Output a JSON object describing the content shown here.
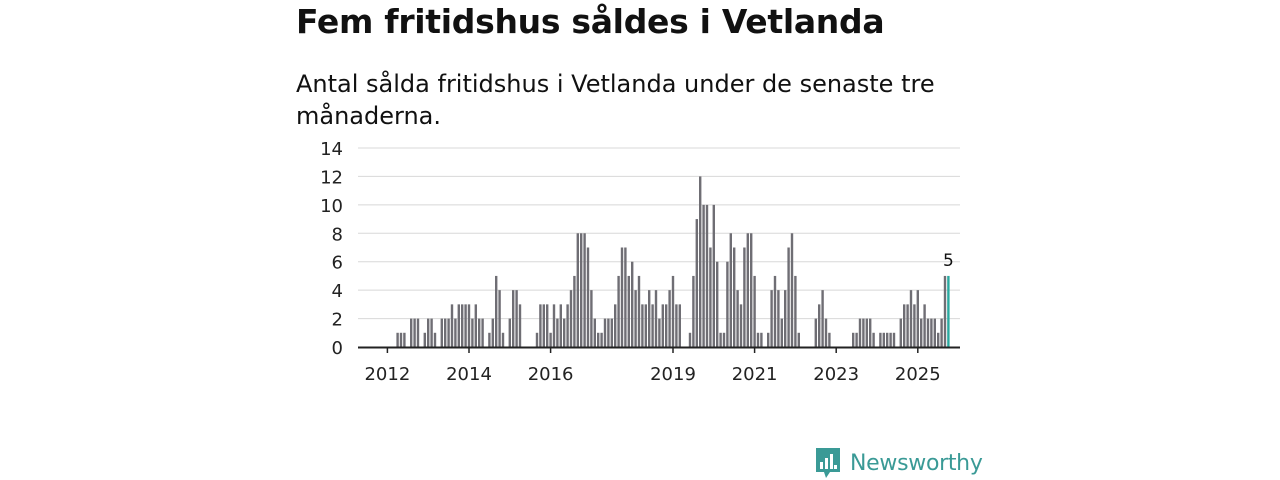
{
  "title": "Fem fritidshus såldes i Vetlanda",
  "subtitle": "Antal sålda fritidshus i Vetlanda under de senaste tre månaderna.",
  "brand": {
    "name": "Newsworthy",
    "color": "#3a9a96"
  },
  "colors": {
    "bar": "#6f6e74",
    "highlight": "#2aa9a0",
    "grid": "#d8d8d8",
    "axis": "#222222"
  },
  "chart_data": {
    "type": "bar",
    "title": "Fem fritidshus såldes i Vetlanda",
    "xlabel": "",
    "ylabel": "",
    "ylim": [
      0,
      14
    ],
    "yticks": [
      "0",
      "2",
      "4",
      "6",
      "8",
      "10",
      "12",
      "14"
    ],
    "xticks": [
      {
        "label": "2012",
        "index": 6
      },
      {
        "label": "2014",
        "index": 30
      },
      {
        "label": "2016",
        "index": 54
      },
      {
        "label": "2019",
        "index": 90
      },
      {
        "label": "2021",
        "index": 114
      },
      {
        "label": "2023",
        "index": 138
      },
      {
        "label": "2025",
        "index": 162
      }
    ],
    "start": "2011-01",
    "frequency": "monthly (3-month rolling)",
    "highlight_label": "5",
    "values": [
      0,
      0,
      0,
      0,
      0,
      0,
      0,
      0,
      0,
      1,
      1,
      1,
      0,
      2,
      2,
      2,
      0,
      1,
      2,
      2,
      1,
      0,
      2,
      2,
      2,
      3,
      2,
      3,
      3,
      3,
      3,
      2,
      3,
      2,
      2,
      0,
      1,
      2,
      5,
      4,
      1,
      0,
      2,
      4,
      4,
      3,
      0,
      0,
      0,
      0,
      1,
      3,
      3,
      3,
      1,
      3,
      2,
      3,
      2,
      3,
      4,
      5,
      8,
      8,
      8,
      7,
      4,
      2,
      1,
      1,
      2,
      2,
      2,
      3,
      5,
      7,
      7,
      5,
      6,
      4,
      5,
      3,
      3,
      4,
      3,
      4,
      2,
      3,
      3,
      4,
      5,
      3,
      3,
      0,
      0,
      1,
      5,
      9,
      12,
      10,
      10,
      7,
      10,
      6,
      1,
      1,
      6,
      8,
      7,
      4,
      3,
      7,
      8,
      8,
      5,
      1,
      1,
      0,
      1,
      4,
      5,
      4,
      2,
      4,
      7,
      8,
      5,
      1,
      0,
      0,
      0,
      0,
      2,
      3,
      4,
      2,
      1,
      0,
      0,
      0,
      0,
      0,
      0,
      1,
      1,
      2,
      2,
      2,
      2,
      1,
      0,
      1,
      1,
      1,
      1,
      1,
      0,
      2,
      3,
      3,
      4,
      3,
      4,
      2,
      3,
      2,
      2,
      2,
      1,
      2,
      5,
      5
    ]
  }
}
